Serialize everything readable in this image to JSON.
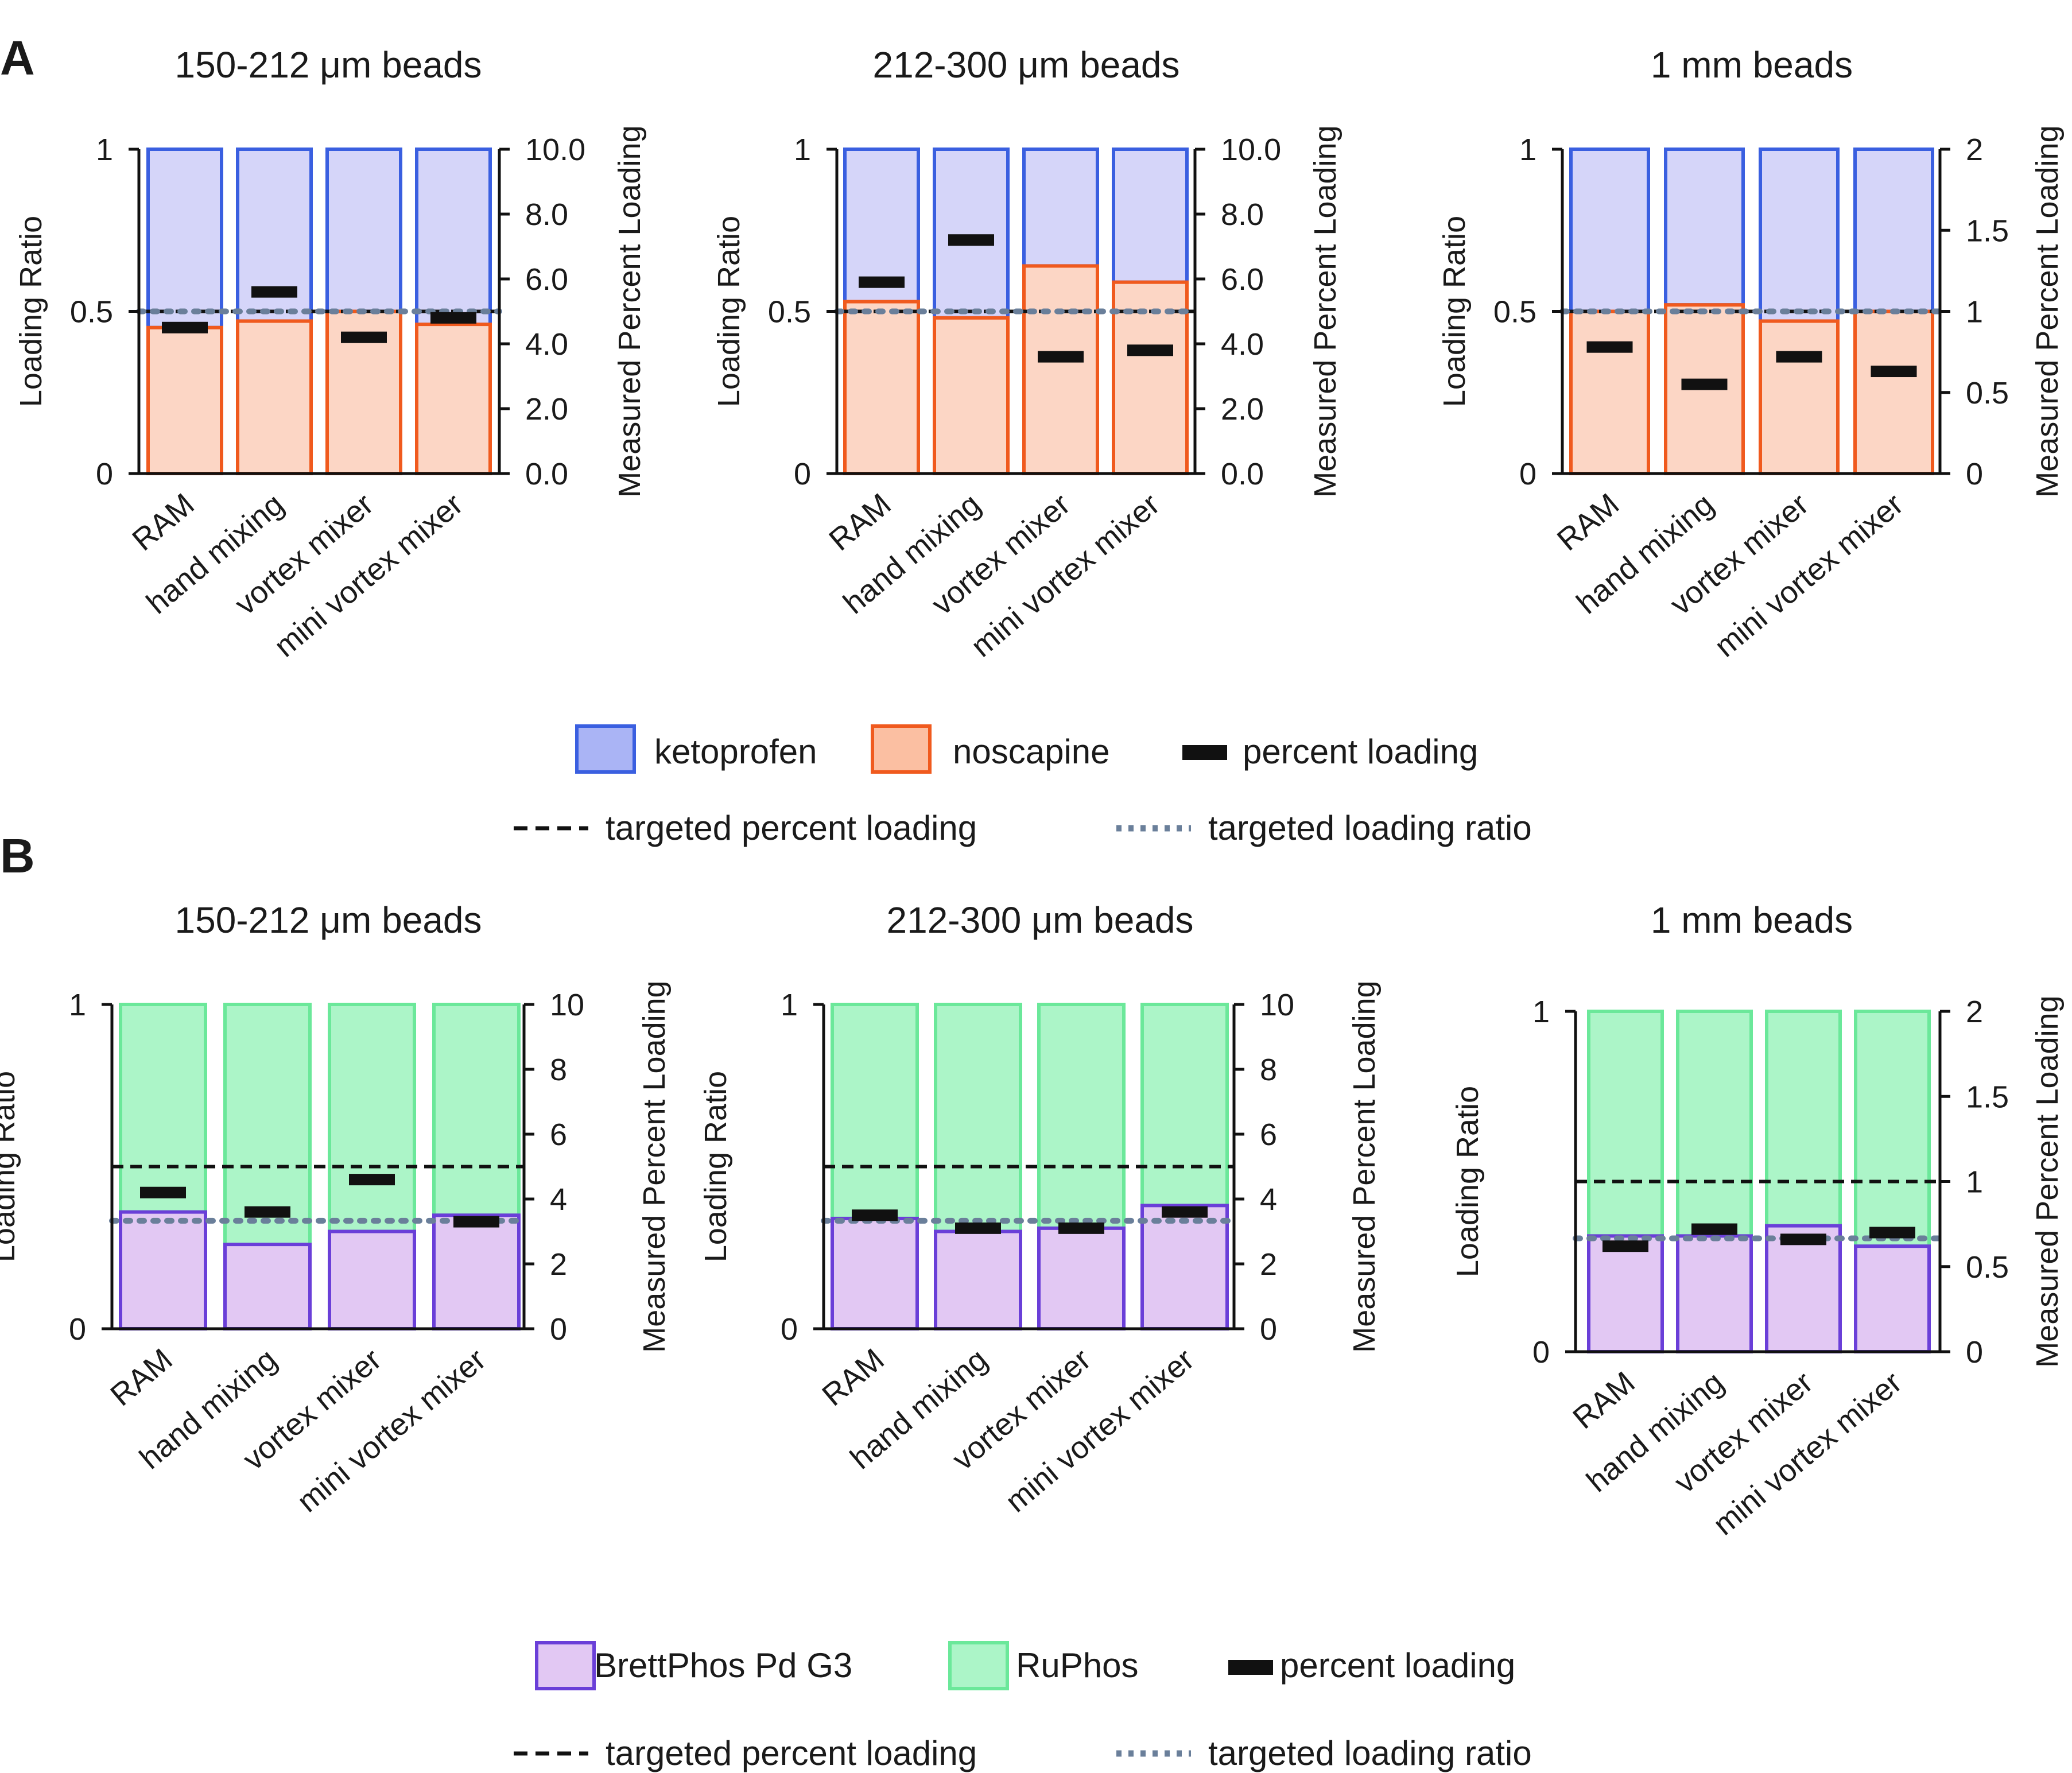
{
  "colors": {
    "ketoprofen_fill": "#d5d5f9",
    "ketoprofen_edge": "#3a5fe0",
    "noscapine_fill": "#fcd6c5",
    "noscapine_edge": "#f05a1e",
    "brettphos_fill": "#e2c8f3",
    "brettphos_edge": "#6a3fd8",
    "ruphos_fill": "#acf5c8",
    "ruphos_edge": "#6be89a",
    "percent_loading": "#111111",
    "targeted_percent": "#111111",
    "targeted_ratio": "#6a7f9a"
  },
  "panels": [
    {
      "letter": "A",
      "legend": {
        "item1": "ketoprofen",
        "item2": "noscapine",
        "item3": "percent loading",
        "item4": "targeted percent loading",
        "item5": "targeted loading ratio"
      }
    },
    {
      "letter": "B",
      "legend": {
        "item1": "BrettPhos Pd G3",
        "item2": "RuPhos",
        "item3": "percent loading",
        "item4": "targeted percent loading",
        "item5": "targeted loading ratio"
      }
    }
  ],
  "chart_data": [
    {
      "type": "bar",
      "panel": "A",
      "stacked": true,
      "title": "150-212 μm beads",
      "categories": [
        "RAM",
        "hand mixing",
        "vortex mixer",
        "mini vortex mixer"
      ],
      "ylabel": "Loading Ratio",
      "y2label": "Measured Percent Loading",
      "ylim": [
        0,
        1
      ],
      "y2lim": [
        0,
        10
      ],
      "yticks": [
        "0",
        "0.5",
        "1"
      ],
      "yticks_values": [
        0,
        0.5,
        1
      ],
      "y2ticks": [
        "0.0",
        "2.0",
        "4.0",
        "6.0",
        "8.0",
        "10.0"
      ],
      "y2ticks_values": [
        0,
        2,
        4,
        6,
        8,
        10
      ],
      "series": [
        {
          "name": "noscapine",
          "values": [
            0.45,
            0.47,
            0.5,
            0.46
          ]
        },
        {
          "name": "ketoprofen",
          "values": [
            0.55,
            0.53,
            0.5,
            0.54
          ]
        }
      ],
      "percent_loading": [
        4.5,
        5.6,
        4.2,
        4.8
      ],
      "targeted_percent_loading": 5.0,
      "targeted_loading_ratio": 0.5
    },
    {
      "type": "bar",
      "panel": "A",
      "stacked": true,
      "title": "212-300 μm beads",
      "categories": [
        "RAM",
        "hand mixing",
        "vortex mixer",
        "mini vortex mixer"
      ],
      "ylabel": "Loading Ratio",
      "y2label": "Measured Percent Loading",
      "ylim": [
        0,
        1
      ],
      "y2lim": [
        0,
        10
      ],
      "yticks": [
        "0",
        "0.5",
        "1"
      ],
      "yticks_values": [
        0,
        0.5,
        1
      ],
      "y2ticks": [
        "0.0",
        "2.0",
        "4.0",
        "6.0",
        "8.0",
        "10.0"
      ],
      "y2ticks_values": [
        0,
        2,
        4,
        6,
        8,
        10
      ],
      "series": [
        {
          "name": "noscapine",
          "values": [
            0.53,
            0.48,
            0.64,
            0.59
          ]
        },
        {
          "name": "ketoprofen",
          "values": [
            0.47,
            0.52,
            0.36,
            0.41
          ]
        }
      ],
      "percent_loading": [
        5.9,
        7.2,
        3.6,
        3.8
      ],
      "targeted_percent_loading": 5.0,
      "targeted_loading_ratio": 0.5
    },
    {
      "type": "bar",
      "panel": "A",
      "stacked": true,
      "title": "1 mm beads",
      "categories": [
        "RAM",
        "hand mixing",
        "vortex mixer",
        "mini vortex mixer"
      ],
      "ylabel": "Loading Ratio",
      "y2label": "Measured Percent Loading",
      "ylim": [
        0,
        1
      ],
      "y2lim": [
        0,
        2
      ],
      "yticks": [
        "0",
        "0.5",
        "1"
      ],
      "yticks_values": [
        0,
        0.5,
        1
      ],
      "y2ticks": [
        "0",
        "0.5",
        "1",
        "1.5",
        "2"
      ],
      "y2ticks_values": [
        0,
        0.5,
        1,
        1.5,
        2
      ],
      "series": [
        {
          "name": "noscapine",
          "values": [
            0.5,
            0.52,
            0.47,
            0.5
          ]
        },
        {
          "name": "ketoprofen",
          "values": [
            0.5,
            0.48,
            0.53,
            0.5
          ]
        }
      ],
      "percent_loading": [
        0.78,
        0.55,
        0.72,
        0.63
      ],
      "targeted_percent_loading": 1.0,
      "targeted_loading_ratio": 0.5
    },
    {
      "type": "bar",
      "panel": "B",
      "stacked": true,
      "title": "150-212 μm beads",
      "categories": [
        "RAM",
        "hand mixing",
        "vortex mixer",
        "mini vortex mixer"
      ],
      "ylabel": "Loading Ratio",
      "y2label": "Measured Percent Loading",
      "ylim": [
        0,
        1
      ],
      "y2lim": [
        0,
        10
      ],
      "yticks": [
        "0",
        "1"
      ],
      "yticks_values": [
        0,
        1
      ],
      "y2ticks": [
        "0",
        "2",
        "4",
        "6",
        "8",
        "10"
      ],
      "y2ticks_values": [
        0,
        2,
        4,
        6,
        8,
        10
      ],
      "series": [
        {
          "name": "BrettPhos Pd G3",
          "values": [
            0.36,
            0.26,
            0.3,
            0.35
          ]
        },
        {
          "name": "RuPhos",
          "values": [
            0.64,
            0.74,
            0.7,
            0.65
          ]
        }
      ],
      "percent_loading": [
        4.2,
        3.6,
        4.6,
        3.3
      ],
      "targeted_percent_loading": 5.0,
      "targeted_loading_ratio": 0.333
    },
    {
      "type": "bar",
      "panel": "B",
      "stacked": true,
      "title": "212-300 μm beads",
      "categories": [
        "RAM",
        "hand mixing",
        "vortex mixer",
        "mini vortex mixer"
      ],
      "ylabel": "Loading Ratio",
      "y2label": "Measured Percent Loading",
      "ylim": [
        0,
        1
      ],
      "y2lim": [
        0,
        10
      ],
      "yticks": [
        "0",
        "1"
      ],
      "yticks_values": [
        0,
        1
      ],
      "y2ticks": [
        "0",
        "2",
        "4",
        "6",
        "8",
        "10"
      ],
      "y2ticks_values": [
        0,
        2,
        4,
        6,
        8,
        10
      ],
      "series": [
        {
          "name": "BrettPhos Pd G3",
          "values": [
            0.34,
            0.3,
            0.31,
            0.38
          ]
        },
        {
          "name": "RuPhos",
          "values": [
            0.66,
            0.7,
            0.69,
            0.62
          ]
        }
      ],
      "percent_loading": [
        3.5,
        3.1,
        3.1,
        3.6
      ],
      "targeted_percent_loading": 5.0,
      "targeted_loading_ratio": 0.333
    },
    {
      "type": "bar",
      "panel": "B",
      "stacked": true,
      "title": "1 mm beads",
      "categories": [
        "RAM",
        "hand mixing",
        "vortex mixer",
        "mini vortex mixer"
      ],
      "ylabel": "Loading Ratio",
      "y2label": "Measured Percent Loading",
      "ylim": [
        0,
        1
      ],
      "y2lim": [
        0,
        2
      ],
      "yticks": [
        "0",
        "1"
      ],
      "yticks_values": [
        0,
        1
      ],
      "y2ticks": [
        "0",
        "0.5",
        "1",
        "1.5",
        "2"
      ],
      "y2ticks_values": [
        0,
        0.5,
        1,
        1.5,
        2
      ],
      "series": [
        {
          "name": "BrettPhos Pd G3",
          "values": [
            0.34,
            0.34,
            0.37,
            0.31
          ]
        },
        {
          "name": "RuPhos",
          "values": [
            0.66,
            0.66,
            0.63,
            0.69
          ]
        }
      ],
      "percent_loading": [
        0.62,
        0.72,
        0.66,
        0.7
      ],
      "targeted_percent_loading": 1.0,
      "targeted_loading_ratio": 0.333
    }
  ]
}
